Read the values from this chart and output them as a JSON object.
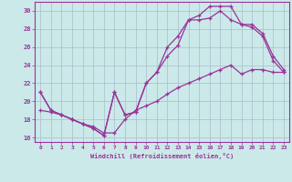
{
  "xlabel": "Windchill (Refroidissement éolien,°C)",
  "xlim": [
    -0.5,
    23.5
  ],
  "ylim": [
    15.5,
    31
  ],
  "xticks": [
    0,
    1,
    2,
    3,
    4,
    5,
    6,
    7,
    8,
    9,
    10,
    11,
    12,
    13,
    14,
    15,
    16,
    17,
    18,
    19,
    20,
    21,
    22,
    23
  ],
  "yticks": [
    16,
    18,
    20,
    22,
    24,
    26,
    28,
    30
  ],
  "bg_color": "#cbe9e9",
  "line_color": "#993399",
  "grid_color": "#aabbcc",
  "line1_x": [
    0,
    1,
    2,
    3,
    4,
    5,
    6,
    7,
    8,
    9,
    10,
    11,
    12,
    13,
    14,
    15,
    16,
    17,
    18,
    19,
    20,
    21,
    22,
    23
  ],
  "line1_y": [
    21.0,
    19.0,
    18.5,
    18.0,
    17.5,
    17.0,
    16.2,
    21.0,
    18.5,
    18.8,
    22.0,
    23.2,
    26.0,
    27.2,
    29.0,
    29.5,
    30.5,
    30.5,
    30.5,
    28.5,
    28.5,
    27.5,
    25.0,
    23.5
  ],
  "line2_x": [
    0,
    1,
    2,
    3,
    4,
    5,
    6,
    7,
    8,
    9,
    10,
    11,
    12,
    13,
    14,
    15,
    16,
    17,
    18,
    19,
    20,
    21,
    22,
    23
  ],
  "line2_y": [
    21.0,
    19.0,
    18.5,
    18.0,
    17.5,
    17.0,
    16.2,
    21.0,
    18.5,
    18.8,
    22.0,
    23.2,
    25.0,
    26.2,
    29.0,
    29.0,
    29.2,
    30.0,
    29.0,
    28.5,
    28.2,
    27.2,
    24.5,
    23.2
  ],
  "line3_x": [
    0,
    1,
    2,
    3,
    4,
    5,
    6,
    7,
    8,
    9,
    10,
    11,
    12,
    13,
    14,
    15,
    16,
    17,
    18,
    19,
    20,
    21,
    22,
    23
  ],
  "line3_y": [
    19.0,
    18.8,
    18.5,
    18.0,
    17.5,
    17.2,
    16.5,
    16.5,
    18.0,
    19.0,
    19.5,
    20.0,
    20.8,
    21.5,
    22.0,
    22.5,
    23.0,
    23.5,
    24.0,
    23.0,
    23.5,
    23.5,
    23.2,
    23.2
  ]
}
